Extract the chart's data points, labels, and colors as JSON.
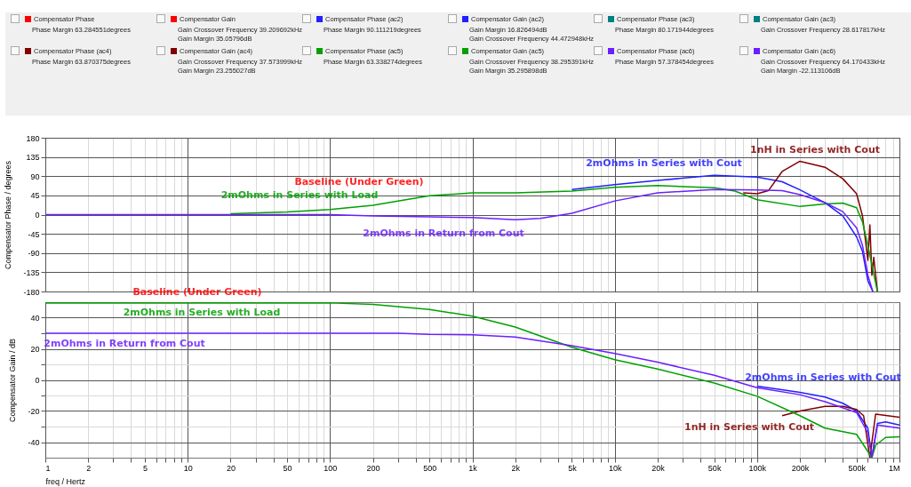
{
  "chart_data": [
    {
      "type": "line",
      "ylabel": "Compensator Phase / degrees",
      "log": "x",
      "grid": true,
      "legend": "top",
      "tick_labels": "y",
      "xlim": [
        1,
        1000000
      ],
      "ylim": [
        -180,
        180
      ],
      "yticks": [
        -180,
        -135,
        -90,
        -45,
        0,
        45,
        90,
        135,
        180
      ],
      "xticks": [
        1,
        2,
        3,
        4,
        5,
        6,
        7,
        8,
        9,
        10,
        20,
        30,
        40,
        50,
        60,
        70,
        80,
        90,
        100,
        200,
        300,
        400,
        500,
        600,
        700,
        800,
        900,
        1000,
        2000,
        3000,
        4000,
        5000,
        6000,
        7000,
        8000,
        9000,
        10000,
        20000,
        30000,
        40000,
        50000,
        60000,
        70000,
        80000,
        90000,
        100000,
        200000,
        300000,
        400000,
        500000,
        600000,
        700000,
        800000,
        900000,
        1000000
      ],
      "series": [
        {
          "name": "Compensator Phase",
          "color": "#ff0000"
        },
        {
          "name": "Compensator Phase (ac2)",
          "color": "#2020ff",
          "x": [
            5000,
            10000,
            20000,
            50000,
            100000,
            150000,
            200000,
            300000,
            400000,
            500000,
            550000,
            600000,
            650000
          ],
          "values": [
            59,
            70,
            80,
            92,
            88,
            77,
            58,
            28,
            -3,
            -52,
            -86,
            -155,
            -180
          ]
        },
        {
          "name": "Compensator Phase (ac3)",
          "color": "#008080"
        },
        {
          "name": "Compensator Phase (ac4)",
          "color": "#800000",
          "x": [
            80000,
            100000,
            120000,
            150000,
            200000,
            300000,
            400000,
            500000,
            550000,
            600000,
            620000,
            640000,
            660000,
            700000
          ],
          "values": [
            51,
            49,
            56,
            101,
            125,
            111,
            84,
            49,
            -3,
            -107,
            -24,
            -142,
            -100,
            -180
          ]
        },
        {
          "name": "Compensator Phase (ac5)",
          "color": "#00a000",
          "x": [
            20,
            50,
            100,
            200,
            500,
            1000,
            2000,
            5000,
            10000,
            20000,
            50000,
            70000,
            100000,
            200000,
            300000,
            400000,
            500000,
            550000,
            600000,
            650000,
            700000
          ],
          "values": [
            2,
            6,
            12,
            22,
            44,
            51,
            51,
            55,
            64,
            68,
            63,
            55,
            35,
            19,
            25,
            27,
            16,
            -17,
            -72,
            -128,
            -180
          ]
        },
        {
          "name": "Compensator Phase (ac6)",
          "color": "#6a1fff",
          "x": [
            1,
            100,
            200,
            500,
            1000,
            2000,
            3000,
            5000,
            10000,
            20000,
            50000,
            100000,
            150000,
            200000,
            300000,
            400000,
            500000,
            550000,
            600000,
            650000
          ],
          "values": [
            0,
            0,
            -3,
            -5,
            -7,
            -12,
            -9,
            3,
            32,
            51,
            59,
            58,
            56,
            47,
            28,
            7,
            -31,
            -72,
            -142,
            -180
          ]
        }
      ],
      "annotations": [
        "Phase Margin 63.284551degrees",
        "Phase Margin 90.111219degrees",
        "Phase Margin 80.171944degrees",
        "Phase Margin 63.870375degrees",
        "Phase Margin 63.338274degrees",
        "Phase Margin 57.378454degrees",
        "Baseline (Under Green)",
        "2mOhms in Series with Load",
        "2mOhms in Return from Cout",
        "2mOhms in Series with Cout",
        "1nH in Series with Cout"
      ]
    },
    {
      "type": "line",
      "xlabel": "freq / Hertz",
      "ylabel": "Compensator Gain / dB",
      "log": "x",
      "grid": true,
      "legend": "top",
      "xlim": [
        1,
        1000000
      ],
      "ylim": [
        -50,
        50
      ],
      "yticks": [
        -40,
        {
          "value": -30,
          "label": null
        },
        -20,
        {
          "value": -10,
          "label": null
        },
        0,
        {
          "value": 10,
          "label": null
        },
        20,
        {
          "value": 30,
          "label": null
        },
        40
      ],
      "xticks": [
        1,
        2,
        {
          "value": 3,
          "label": null
        },
        {
          "value": 4,
          "label": null
        },
        5,
        {
          "value": 6,
          "label": null
        },
        {
          "value": 7,
          "label": null
        },
        {
          "value": 8,
          "label": null
        },
        {
          "value": 9,
          "label": null
        },
        10,
        20,
        {
          "value": 30,
          "label": null
        },
        {
          "value": 40,
          "label": null
        },
        50,
        {
          "value": 60,
          "label": null
        },
        {
          "value": 70,
          "label": null
        },
        {
          "value": 80,
          "label": null
        },
        {
          "value": 90,
          "label": null
        },
        100,
        200,
        {
          "value": 300,
          "label": null
        },
        {
          "value": 400,
          "label": null
        },
        500,
        {
          "value": 600,
          "label": null
        },
        {
          "value": 700,
          "label": null
        },
        {
          "value": 800,
          "label": null
        },
        {
          "value": 900,
          "label": null
        },
        {
          "value": 1000,
          "label": "1k"
        },
        {
          "value": 2000,
          "label": "2k"
        },
        {
          "value": 3000,
          "label": null
        },
        {
          "value": 4000,
          "label": null
        },
        {
          "value": 5000,
          "label": "5k"
        },
        {
          "value": 6000,
          "label": null
        },
        {
          "value": 7000,
          "label": null
        },
        {
          "value": 8000,
          "label": null
        },
        {
          "value": 9000,
          "label": null
        },
        {
          "value": 10000,
          "label": "10k"
        },
        {
          "value": 20000,
          "label": "20k"
        },
        {
          "value": 30000,
          "label": null
        },
        {
          "value": 40000,
          "label": null
        },
        {
          "value": 50000,
          "label": "50k"
        },
        {
          "value": 60000,
          "label": null
        },
        {
          "value": 70000,
          "label": null
        },
        {
          "value": 80000,
          "label": null
        },
        {
          "value": 90000,
          "label": null
        },
        {
          "value": 100000,
          "label": "100k"
        },
        {
          "value": 200000,
          "label": "200k"
        },
        {
          "value": 300000,
          "label": null
        },
        {
          "value": 400000,
          "label": null
        },
        {
          "value": 500000,
          "label": "500k"
        },
        {
          "value": 600000,
          "label": null
        },
        {
          "value": 700000,
          "label": null
        },
        {
          "value": 800000,
          "label": null
        },
        {
          "value": 900000,
          "label": null
        },
        {
          "value": 1000000,
          "label": "1M"
        }
      ],
      "series": [
        {
          "name": "Compensator Gain",
          "color": "#ff0000"
        },
        {
          "name": "Compensator Gain (ac2)",
          "color": "#2020ff",
          "x": [
            100000,
            200000,
            300000,
            400000,
            500000,
            600000,
            640000,
            700000,
            800000,
            1000000
          ],
          "values": [
            -4,
            -8,
            -11,
            -15,
            -20,
            -31,
            -50,
            -28,
            -27,
            -29
          ]
        },
        {
          "name": "Compensator Gain (ac3)",
          "color": "#008080"
        },
        {
          "name": "Compensator Gain (ac4)",
          "color": "#800000",
          "x": [
            150000,
            200000,
            300000,
            400000,
            500000,
            560000,
            620000,
            680000,
            1000000
          ],
          "values": [
            -23,
            -20,
            -17,
            -17,
            -19,
            -23,
            -50,
            -22,
            -24
          ]
        },
        {
          "name": "Compensator Gain (ac5)",
          "color": "#00a000",
          "x": [
            1,
            100,
            200,
            500,
            1000,
            2000,
            5000,
            10000,
            20000,
            50000,
            100000,
            200000,
            300000,
            500000,
            580000,
            640000,
            680000,
            800000,
            1000000
          ],
          "values": [
            49.5,
            49.5,
            48.6,
            45.3,
            41,
            34,
            21,
            13,
            7,
            -2,
            -10.5,
            -23,
            -31,
            -35,
            -44,
            -50,
            -42,
            -37,
            -36.5
          ]
        },
        {
          "name": "Compensator Gain (ac6)",
          "color": "#6a1fff",
          "x": [
            1,
            300,
            500,
            1000,
            2000,
            5000,
            10000,
            20000,
            50000,
            100000,
            200000,
            300000,
            500000,
            600000,
            640000,
            700000,
            1000000
          ],
          "values": [
            30,
            30,
            29.3,
            29,
            27.6,
            22,
            17,
            11.4,
            3,
            -5,
            -9.5,
            -14,
            -21,
            -34,
            -50,
            -29,
            -31
          ]
        }
      ],
      "annotations": [
        "Gain Crossover Frequency 39.209692kHz\nGain Margin 35.05796dB",
        "Gain Margin 16.826494dB\nGain Crossover Frequency 44.472948kHz",
        "Gain Crossover Frequency 28.617817kHz",
        "Gain Crossover Frequency 37.573999kHz\nGain Margin 23.255027dB",
        "Gain Crossover Frequency 38.295391kHz\nGain Margin 35.295898dB",
        "Gain Crossover Frequency 64.170433kHz\nGain Margin -22.113106dB",
        "Baseline (Under Green)",
        "2mOhms in Series with Load",
        "2mOhms in Return from Cout",
        "2mOhms in Series with Cout",
        "1nH in Series with Cout"
      ]
    }
  ]
}
